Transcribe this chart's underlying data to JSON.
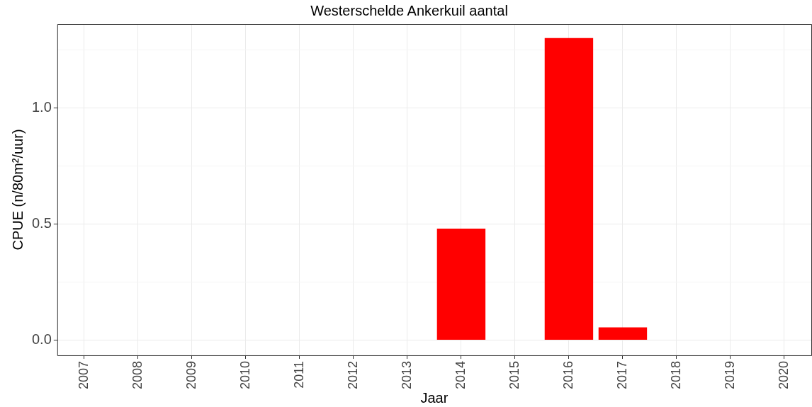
{
  "chart_data": {
    "type": "bar",
    "title": "Westerschelde Ankerkuil aantal",
    "xlabel": "Jaar",
    "ylabel": "CPUE (n/80m²/uur)",
    "categories": [
      "2007",
      "2008",
      "2009",
      "2010",
      "2011",
      "2012",
      "2013",
      "2014",
      "2015",
      "2016",
      "2017",
      "2018",
      "2019",
      "2020"
    ],
    "values": [
      0,
      0,
      0,
      0,
      0,
      0,
      0,
      0.48,
      0,
      1.3,
      0.055,
      0,
      0,
      0
    ],
    "color": "#ff0000",
    "ylim": [
      -0.065,
      1.36
    ],
    "yticks": [
      {
        "value": 0,
        "label": "0.0"
      },
      {
        "value": 0.25,
        "label": null
      },
      {
        "value": 0.5,
        "label": "0.5"
      },
      {
        "value": 0.75,
        "label": null
      },
      {
        "value": 1,
        "label": "1.0"
      },
      {
        "value": 1.25,
        "label": null
      }
    ],
    "grid": true,
    "legend": false
  }
}
